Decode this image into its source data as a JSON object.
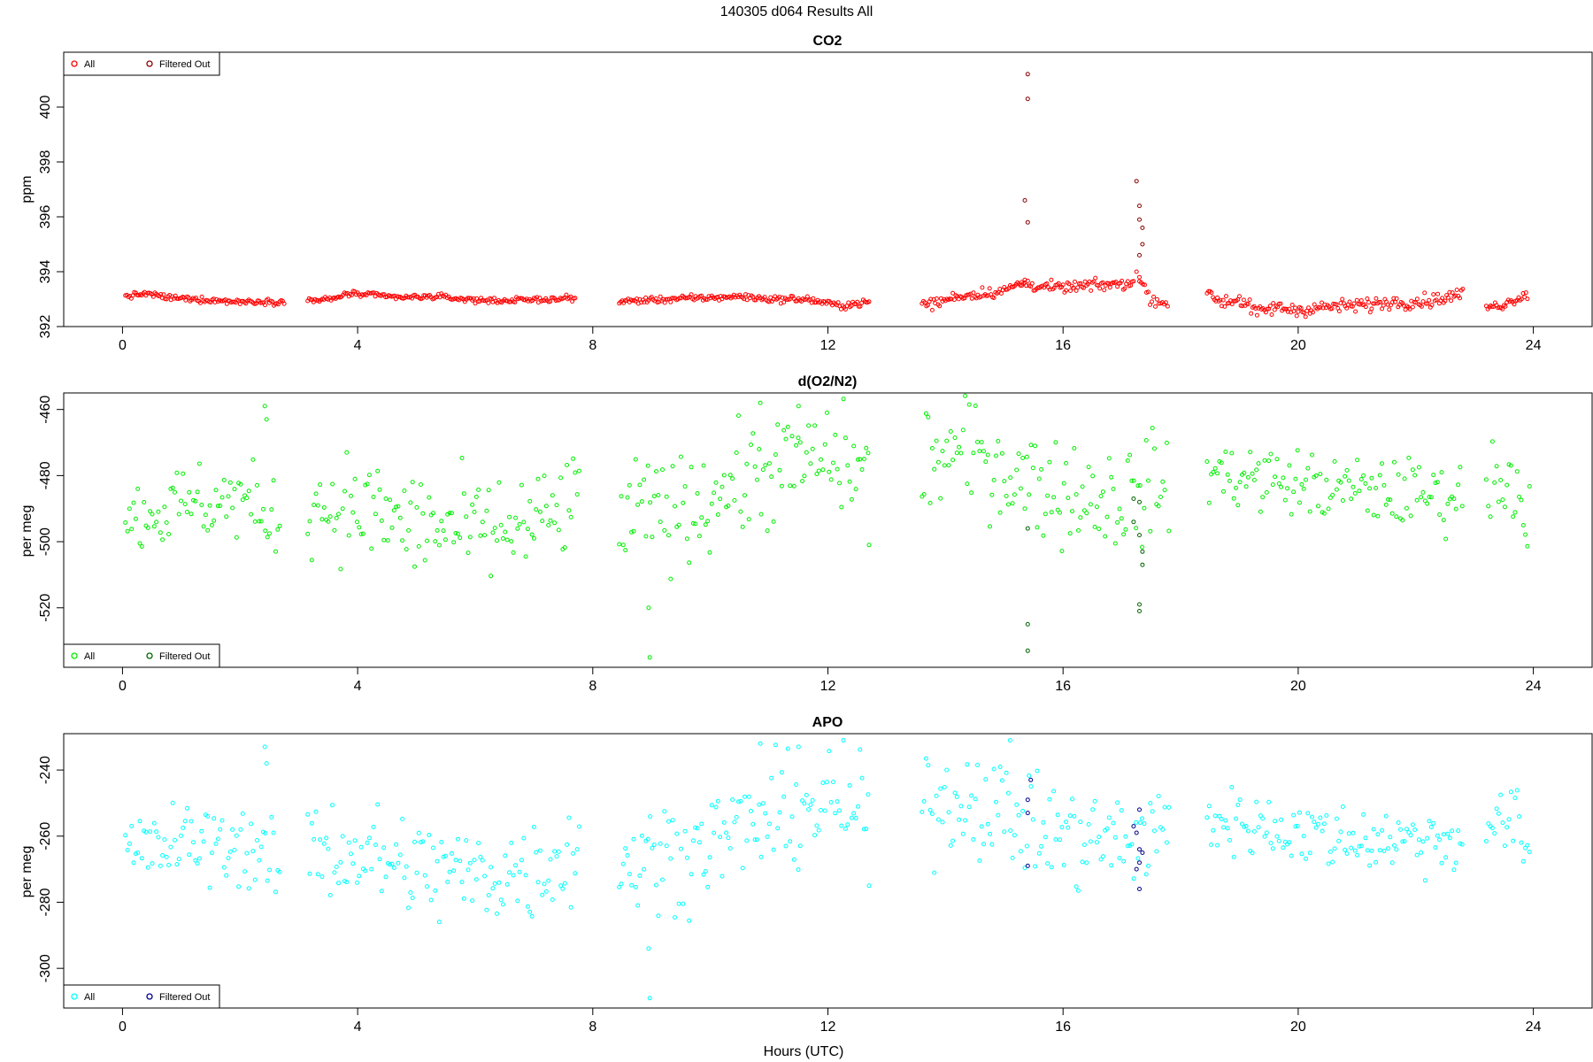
{
  "figure": {
    "title": "140305   d064   Results All",
    "xlabel": "Hours (UTC)"
  },
  "chart_data": [
    {
      "type": "scatter",
      "title": "CO2",
      "ylabel": "ppm",
      "xlim": [
        -1,
        25
      ],
      "ylim": [
        392,
        402
      ],
      "xticks": [
        0,
        4,
        8,
        12,
        16,
        20,
        24
      ],
      "yticks": [
        392,
        394,
        396,
        398,
        400
      ],
      "legend_position": "top-left",
      "legend": [
        "All",
        "Filtered Out"
      ],
      "colors": {
        "all": "#ff0000",
        "filtered": "#8b0000"
      },
      "series": [
        {
          "name": "All",
          "segments": [
            {
              "x": [
                0.05,
                0.4,
                0.8,
                1.2,
                1.6,
                2.0,
                2.4,
                2.75
              ],
              "y": [
                393.1,
                393.2,
                393.05,
                393.0,
                392.95,
                392.9,
                392.92,
                392.9
              ],
              "step": 0.025,
              "noise": 0.05
            },
            {
              "x": [
                3.15,
                3.6,
                3.8,
                4.2,
                4.8,
                5.3,
                5.8,
                6.2,
                6.6,
                7.0,
                7.4,
                7.7
              ],
              "y": [
                392.95,
                393.0,
                393.2,
                393.15,
                393.05,
                393.1,
                393.0,
                392.95,
                392.95,
                392.98,
                393.0,
                393.05
              ],
              "step": 0.025,
              "noise": 0.05
            },
            {
              "x": [
                8.45,
                8.8,
                9.3,
                10.0,
                10.5,
                11.0,
                11.6,
                12.0,
                12.2,
                12.7
              ],
              "y": [
                392.9,
                392.95,
                393.0,
                393.05,
                393.1,
                393.0,
                393.0,
                392.85,
                392.75,
                392.9
              ],
              "step": 0.025,
              "noise": 0.06
            },
            {
              "x": [
                13.6,
                13.9,
                14.2,
                14.6,
                15.0,
                15.3,
                15.5,
                15.9,
                16.5,
                17.0,
                17.2
              ],
              "y": [
                392.8,
                392.9,
                393.1,
                393.2,
                393.3,
                393.6,
                393.5,
                393.4,
                393.5,
                393.55,
                393.6
              ],
              "step": 0.025,
              "noise": 0.1
            },
            {
              "x": [
                17.3,
                17.5,
                17.8
              ],
              "y": [
                393.7,
                393.0,
                392.85
              ],
              "step": 0.03,
              "noise": 0.1
            },
            {
              "x": [
                18.45,
                18.7,
                19.0,
                19.3,
                19.6,
                20.0,
                20.4,
                20.8,
                21.2,
                21.6,
                22.0,
                22.4,
                22.8
              ],
              "y": [
                393.2,
                392.9,
                393.0,
                392.5,
                392.7,
                392.6,
                392.7,
                392.75,
                392.8,
                392.9,
                392.9,
                393.0,
                393.2
              ],
              "step": 0.025,
              "noise": 0.12
            },
            {
              "x": [
                23.2,
                23.5,
                23.9
              ],
              "y": [
                392.7,
                392.8,
                393.2
              ],
              "step": 0.025,
              "noise": 0.08
            }
          ],
          "extra_points": [
            [
              15.3,
              393.5
            ],
            [
              15.35,
              393.7
            ],
            [
              17.25,
              394.0
            ],
            [
              17.3,
              393.8
            ]
          ]
        },
        {
          "name": "Filtered Out",
          "points": [
            [
              15.4,
              401.2
            ],
            [
              15.4,
              400.3
            ],
            [
              15.35,
              396.6
            ],
            [
              15.4,
              395.8
            ],
            [
              17.25,
              397.3
            ],
            [
              17.3,
              396.4
            ],
            [
              17.3,
              395.9
            ],
            [
              17.35,
              395.6
            ],
            [
              17.35,
              395.0
            ],
            [
              17.3,
              394.6
            ]
          ]
        }
      ]
    },
    {
      "type": "scatter",
      "title": "d(O2/N2)",
      "ylabel": "per meg",
      "xlim": [
        -1,
        25
      ],
      "ylim": [
        -538,
        -455
      ],
      "xticks": [
        0,
        4,
        8,
        12,
        16,
        20,
        24
      ],
      "yticks": [
        -520,
        -500,
        -480,
        -460
      ],
      "legend_position": "bottom-left",
      "legend": [
        "All",
        "Filtered Out"
      ],
      "colors": {
        "all": "#00ee00",
        "filtered": "#006400"
      },
      "series": [
        {
          "name": "All",
          "segments": [
            {
              "x": [
                0.05,
                1.0,
                2.0,
                2.7
              ],
              "y": [
                -493,
                -489,
                -487,
                -495
              ],
              "step": 0.035,
              "noise": 6
            },
            {
              "x": [
                3.15,
                4.0,
                5.0,
                6.0,
                7.0,
                7.8
              ],
              "y": [
                -488,
                -490,
                -495,
                -497,
                -495,
                -488
              ],
              "step": 0.035,
              "noise": 8
            },
            {
              "x": [
                8.45,
                9.5,
                10.5,
                11.5,
                12.2,
                12.7
              ],
              "y": [
                -492,
                -490,
                -482,
                -476,
                -475,
                -480
              ],
              "step": 0.035,
              "noise": 8
            },
            {
              "x": [
                13.6,
                14.5,
                15.2,
                16.0,
                17.0,
                17.8
              ],
              "y": [
                -475,
                -473,
                -480,
                -485,
                -487,
                -483
              ],
              "step": 0.035,
              "noise": 8
            },
            {
              "x": [
                18.45,
                19.5,
                20.5,
                21.5,
                22.5,
                22.8
              ],
              "y": [
                -479,
                -481,
                -484,
                -485,
                -486,
                -486
              ],
              "step": 0.035,
              "noise": 5
            },
            {
              "x": [
                23.2,
                23.6,
                23.95
              ],
              "y": [
                -482,
                -480,
                -492
              ],
              "step": 0.035,
              "noise": 6
            }
          ],
          "extra_points": [
            [
              2.42,
              -459
            ],
            [
              2.45,
              -463
            ],
            [
              8.95,
              -520
            ],
            [
              8.97,
              -535
            ],
            [
              10.85,
              -458
            ],
            [
              11.5,
              -459
            ],
            [
              12.7,
              -501
            ]
          ]
        },
        {
          "name": "Filtered Out",
          "points": [
            [
              15.4,
              -496
            ],
            [
              15.4,
              -525
            ],
            [
              15.4,
              -533
            ],
            [
              17.2,
              -487
            ],
            [
              17.3,
              -488
            ],
            [
              17.3,
              -498
            ],
            [
              17.35,
              -503
            ],
            [
              17.35,
              -507
            ],
            [
              17.3,
              -519
            ],
            [
              17.3,
              -521
            ],
            [
              17.2,
              -494
            ]
          ]
        }
      ]
    },
    {
      "type": "scatter",
      "title": "APO",
      "ylabel": "per meg",
      "xlim": [
        -1,
        25
      ],
      "ylim": [
        -312,
        -229
      ],
      "xticks": [
        0,
        4,
        8,
        12,
        16,
        20,
        24
      ],
      "yticks": [
        -300,
        -280,
        -260,
        -240
      ],
      "legend_position": "bottom-left",
      "legend": [
        "All",
        "Filtered Out"
      ],
      "colors": {
        "all": "#00ffff",
        "filtered": "#00008b"
      },
      "series": [
        {
          "name": "All",
          "segments": [
            {
              "x": [
                0.05,
                1.0,
                2.0,
                2.7
              ],
              "y": [
                -266,
                -262,
                -262,
                -270
              ],
              "step": 0.035,
              "noise": 6
            },
            {
              "x": [
                3.15,
                4.0,
                5.0,
                6.0,
                7.0,
                7.8
              ],
              "y": [
                -263,
                -265,
                -270,
                -272,
                -270,
                -264
              ],
              "step": 0.035,
              "noise": 8
            },
            {
              "x": [
                8.45,
                9.5,
                10.5,
                11.5,
                12.2,
                12.7
              ],
              "y": [
                -268,
                -265,
                -258,
                -252,
                -250,
                -255
              ],
              "step": 0.035,
              "noise": 8
            },
            {
              "x": [
                13.6,
                14.5,
                15.2,
                16.0,
                17.0,
                17.8
              ],
              "y": [
                -250,
                -248,
                -255,
                -260,
                -262,
                -258
              ],
              "step": 0.035,
              "noise": 8
            },
            {
              "x": [
                18.45,
                19.5,
                20.5,
                21.5,
                22.5,
                22.8
              ],
              "y": [
                -255,
                -257,
                -260,
                -261,
                -261,
                -260
              ],
              "step": 0.035,
              "noise": 5
            },
            {
              "x": [
                23.2,
                23.6,
                23.95
              ],
              "y": [
                -258,
                -255,
                -266
              ],
              "step": 0.035,
              "noise": 6
            }
          ],
          "extra_points": [
            [
              2.42,
              -233
            ],
            [
              2.45,
              -238
            ],
            [
              8.95,
              -294
            ],
            [
              8.97,
              -309
            ],
            [
              10.85,
              -232
            ],
            [
              11.5,
              -233
            ],
            [
              12.7,
              -275
            ],
            [
              15.1,
              -231
            ]
          ]
        },
        {
          "name": "Filtered Out",
          "points": [
            [
              15.4,
              -249
            ],
            [
              15.45,
              -243
            ],
            [
              15.4,
              -253
            ],
            [
              15.4,
              -269
            ],
            [
              17.2,
              -257
            ],
            [
              17.25,
              -259
            ],
            [
              17.3,
              -264
            ],
            [
              17.35,
              -265
            ],
            [
              17.3,
              -268
            ],
            [
              17.25,
              -270
            ],
            [
              17.3,
              -276
            ],
            [
              17.3,
              -252
            ]
          ]
        }
      ]
    }
  ]
}
